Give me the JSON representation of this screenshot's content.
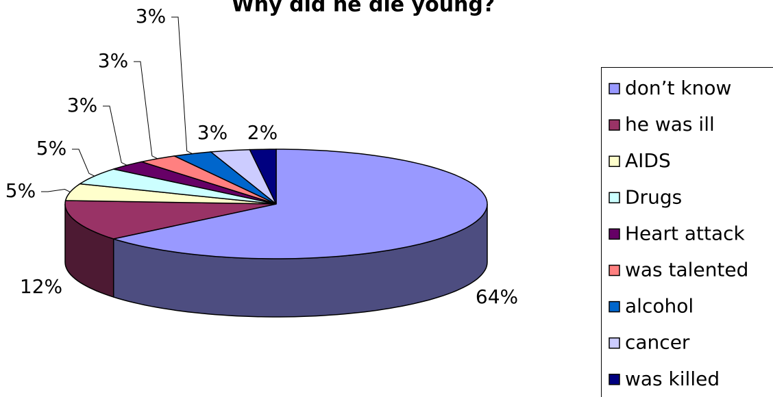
{
  "chart_data": {
    "type": "pie3d",
    "title": "Why did he die young?",
    "categories": [
      "don’t know",
      "he was ill",
      "AIDS",
      "Drugs",
      "Heart attack",
      "was talented",
      "alcohol",
      "cancer",
      "was killed"
    ],
    "values": [
      64,
      12,
      5,
      5,
      3,
      3,
      3,
      3,
      2
    ],
    "value_labels": [
      "64%",
      "12%",
      "5%",
      "5%",
      "3%",
      "3%",
      "3%",
      "3%",
      "2%"
    ],
    "colors": [
      "#9999ff",
      "#993366",
      "#ffffcc",
      "#ccffff",
      "#660066",
      "#ff8080",
      "#0066cc",
      "#ccccff",
      "#000080"
    ],
    "legend": "right"
  }
}
